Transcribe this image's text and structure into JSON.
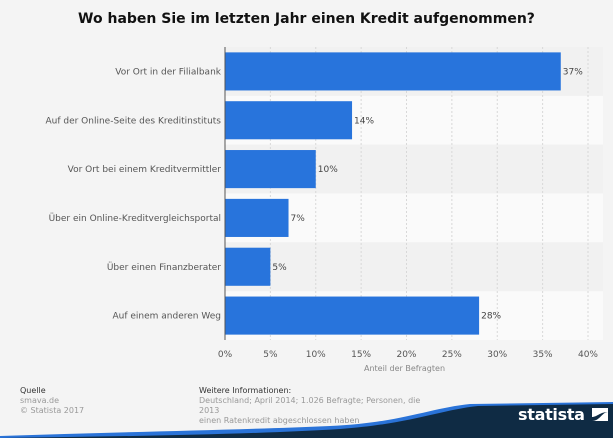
{
  "chart_data": {
    "type": "bar",
    "orientation": "horizontal",
    "title": "Wo haben Sie im letzten Jahr einen Kredit aufgenommen?",
    "categories": [
      "Vor Ort in der Filialbank",
      "Auf der Online-Seite des Kreditinstituts",
      "Vor Ort bei einem Kreditvermittler",
      "Über ein Online-Kreditvergleichsportal",
      "Über einen Finanzberater",
      "Auf einem anderen Weg"
    ],
    "values": [
      37,
      14,
      10,
      7,
      5,
      28
    ],
    "value_labels": [
      "37%",
      "14%",
      "10%",
      "7%",
      "5%",
      "28%"
    ],
    "xlabel": "Anteil der Befragten",
    "ylabel": "",
    "xlim": [
      0,
      40
    ],
    "xticks": [
      0,
      5,
      10,
      15,
      20,
      25,
      30,
      35,
      40
    ],
    "xtick_labels": [
      "0%",
      "5%",
      "10%",
      "15%",
      "20%",
      "25%",
      "30%",
      "35%",
      "40%"
    ],
    "grid": true,
    "legend": "none",
    "bar_color": "#2874dc"
  },
  "footer": {
    "source_heading": "Quelle",
    "source": "smava.de",
    "copyright": "© Statista 2017",
    "info_heading": "Weitere Informationen:",
    "info_line1": "Deutschland; April 2014; 1.026 Befragte; Personen, die 2013",
    "info_line2": "einen Ratenkredit abgeschlossen haben"
  },
  "brand": {
    "name": "statista",
    "logo_icon": "statista-logo-icon"
  }
}
